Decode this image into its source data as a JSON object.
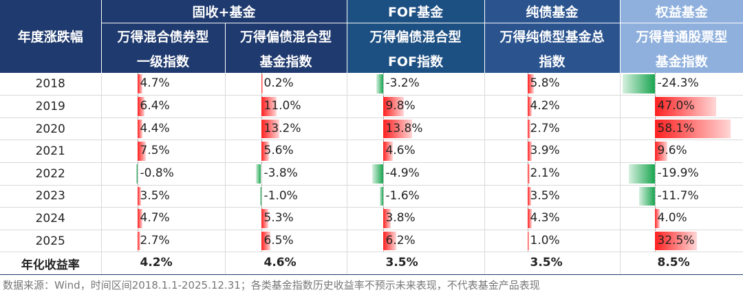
{
  "header": {
    "row_header": "年度涨跌幅",
    "groups": [
      "固收+基金",
      "FOF基金",
      "纯债基金",
      "权益基金"
    ],
    "columns": [
      {
        "line1": "万得混合债券型",
        "line2": "一级指数"
      },
      {
        "line1": "万得偏债混合型",
        "line2": "基金指数"
      },
      {
        "line1": "万得偏债混合型",
        "line2": "FOF指数"
      },
      {
        "line1": "万得纯债型基金总",
        "line2": "指数"
      },
      {
        "line1": "万得普通股票型",
        "line2": "基金指数"
      }
    ]
  },
  "chart_data": {
    "type": "table",
    "categories": [
      "2018",
      "2019",
      "2020",
      "2021",
      "2022",
      "2023",
      "2024",
      "2025"
    ],
    "series": [
      {
        "name": "万得混合债券型一级指数",
        "values": [
          4.7,
          6.4,
          4.4,
          7.5,
          -0.8,
          3.5,
          4.7,
          2.7
        ],
        "labels": [
          "4.7%",
          "6.4%",
          "4.4%",
          "7.5%",
          "-0.8%",
          "3.5%",
          "4.7%",
          "2.7%"
        ],
        "annual": "4.2%"
      },
      {
        "name": "万得偏债混合型基金指数",
        "values": [
          0.2,
          11.0,
          13.2,
          5.6,
          -3.8,
          -1.0,
          5.3,
          6.5
        ],
        "labels": [
          "0.2%",
          "11.0%",
          "13.2%",
          "5.6%",
          "-3.8%",
          "-1.0%",
          "5.3%",
          "6.5%"
        ],
        "annual": "4.6%"
      },
      {
        "name": "万得偏债混合型FOF指数",
        "values": [
          -3.2,
          9.8,
          13.8,
          4.6,
          -4.9,
          -1.6,
          3.8,
          6.2
        ],
        "labels": [
          "-3.2%",
          "9.8%",
          "13.8%",
          "4.6%",
          "-4.9%",
          "-1.6%",
          "3.8%",
          "6.2%"
        ],
        "annual": "3.5%"
      },
      {
        "name": "万得纯债型基金总指数",
        "values": [
          5.8,
          4.2,
          2.7,
          3.9,
          2.1,
          3.5,
          4.3,
          1.0
        ],
        "labels": [
          "5.8%",
          "4.2%",
          "2.7%",
          "3.9%",
          "2.1%",
          "3.5%",
          "4.3%",
          "1.0%"
        ],
        "annual": "3.5%"
      },
      {
        "name": "万得普通股票型基金指数",
        "values": [
          -24.3,
          47.0,
          58.1,
          9.6,
          -19.9,
          -11.7,
          4.0,
          32.5
        ],
        "labels": [
          "-24.3%",
          "47.0%",
          "58.1%",
          "9.6%",
          "-19.9%",
          "-11.7%",
          "4.0%",
          "32.5%"
        ],
        "annual": "8.5%"
      }
    ],
    "summary_label": "年化收益率",
    "colors": {
      "positive": "#ff2020",
      "negative": "#1aa550"
    }
  },
  "footnote": "数据来源：Wind，时间区间2018.1.1-2025.12.31；各类基金指数历史收益率不预示未来表现，不代表基金产品表现"
}
